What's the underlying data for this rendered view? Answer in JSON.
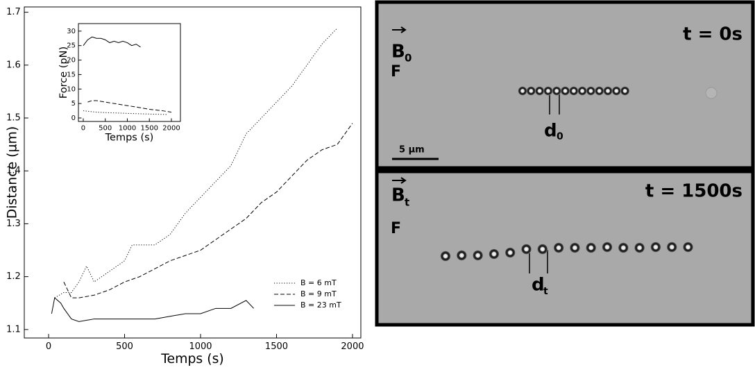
{
  "chart_data": [
    {
      "type": "line",
      "xlabel": "Temps (s)",
      "ylabel": "Distance (µm)",
      "xlim": [
        -160,
        2055
      ],
      "ylim": [
        1.084,
        1.71
      ],
      "xticks": [
        0,
        500,
        1000,
        1500,
        2000
      ],
      "yticks": [
        1.1,
        1.2,
        1.3,
        1.4,
        1.5,
        1.6,
        1.7
      ],
      "legend": "lower right",
      "series": [
        {
          "name": "B = 6 mT",
          "color": "#000000",
          "style": "dotted",
          "x": [
            40,
            100,
            150,
            200,
            250,
            300,
            350,
            400,
            450,
            500,
            550,
            600,
            700,
            800,
            900,
            1000,
            1100,
            1200,
            1300,
            1400,
            1500,
            1600,
            1700,
            1800,
            1900
          ],
          "values": [
            1.16,
            1.17,
            1.17,
            1.19,
            1.22,
            1.19,
            1.2,
            1.21,
            1.22,
            1.23,
            1.26,
            1.26,
            1.26,
            1.28,
            1.32,
            1.35,
            1.38,
            1.41,
            1.47,
            1.5,
            1.53,
            1.56,
            1.6,
            1.64,
            1.67
          ]
        },
        {
          "name": "B = 9 mT",
          "color": "#000000",
          "style": "dashed",
          "x": [
            100,
            150,
            200,
            300,
            400,
            500,
            600,
            700,
            800,
            900,
            1000,
            1100,
            1200,
            1300,
            1400,
            1500,
            1600,
            1700,
            1800,
            1900,
            2000
          ],
          "values": [
            1.19,
            1.16,
            1.16,
            1.165,
            1.175,
            1.19,
            1.2,
            1.215,
            1.23,
            1.24,
            1.25,
            1.27,
            1.29,
            1.31,
            1.34,
            1.36,
            1.39,
            1.42,
            1.44,
            1.45,
            1.49
          ]
        },
        {
          "name": "B = 23 mT",
          "color": "#000000",
          "style": "solid",
          "x": [
            20,
            40,
            80,
            100,
            150,
            200,
            300,
            400,
            500,
            600,
            700,
            800,
            900,
            1000,
            1100,
            1200,
            1300,
            1350
          ],
          "values": [
            1.13,
            1.16,
            1.15,
            1.14,
            1.12,
            1.115,
            1.12,
            1.12,
            1.12,
            1.12,
            1.12,
            1.125,
            1.13,
            1.13,
            1.14,
            1.14,
            1.155,
            1.14
          ]
        }
      ]
    },
    {
      "type": "line",
      "xlabel": "Temps (s)",
      "ylabel": "Force (pN)",
      "xlim": [
        -110,
        2205
      ],
      "ylim": [
        -1.2,
        32.6
      ],
      "xticks": [
        0,
        500,
        1000,
        1500,
        2000
      ],
      "yticks": [
        0,
        5,
        10,
        15,
        20,
        25,
        30
      ],
      "series": [
        {
          "color": "#000000",
          "style": "solid",
          "x": [
            0,
            100,
            200,
            300,
            400,
            500,
            600,
            700,
            800,
            900,
            1000,
            1100,
            1200,
            1300
          ],
          "values": [
            25,
            27,
            28,
            27.5,
            27.5,
            27,
            26,
            26.5,
            26,
            26.5,
            26,
            25,
            25.5,
            24.5
          ]
        },
        {
          "color": "#000000",
          "style": "dashed",
          "x": [
            100,
            200,
            300,
            500,
            700,
            900,
            1200,
            1500,
            1800,
            2000
          ],
          "values": [
            5.5,
            6,
            6,
            5.5,
            5,
            4.5,
            3.8,
            3,
            2.5,
            2
          ]
        },
        {
          "color": "#000000",
          "style": "dotted",
          "x": [
            0,
            300,
            600,
            1000,
            1400,
            1900
          ],
          "values": [
            2.5,
            2,
            1.8,
            1.6,
            1.4,
            1.2
          ]
        }
      ]
    }
  ],
  "image_panels": [
    {
      "vector": "B",
      "vector_sub": "0",
      "force": "F",
      "time": "t = 0s",
      "distance": "d",
      "distance_sub": "0",
      "scale": "5 µm"
    },
    {
      "vector": "B",
      "vector_sub": "t",
      "force": "F",
      "time": "t = 1500s",
      "distance": "d",
      "distance_sub": "t"
    }
  ]
}
